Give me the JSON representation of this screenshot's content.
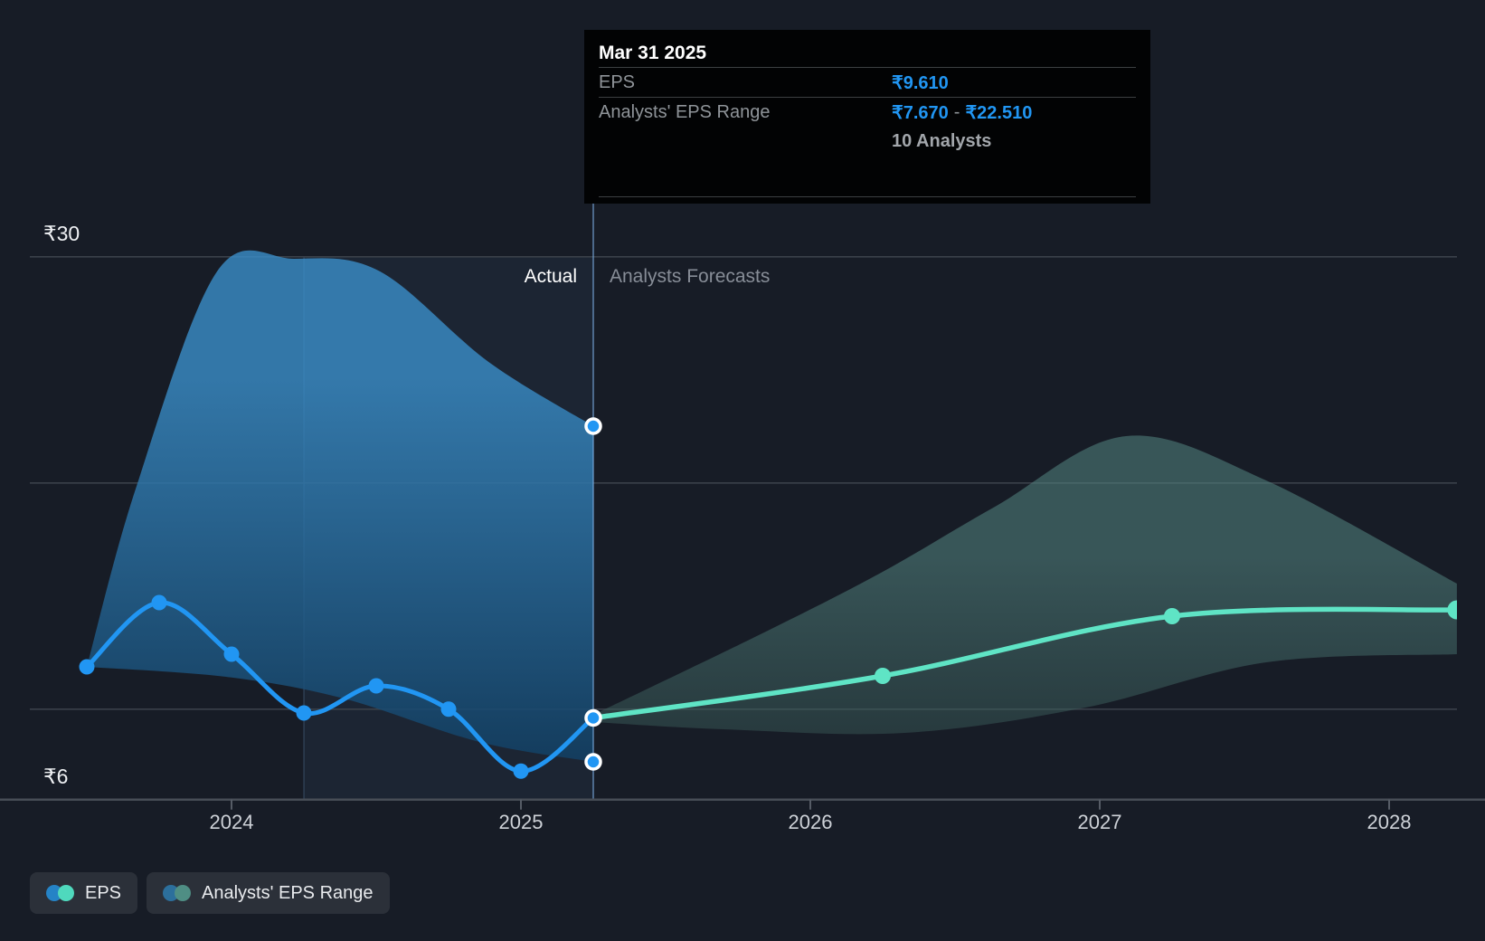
{
  "tooltip": {
    "date": "Mar 31 2025",
    "eps_label": "EPS",
    "eps_value": "₹9.610",
    "range_label": "Analysts' EPS Range",
    "range_low": "₹7.670",
    "range_separator": "-",
    "range_high": "₹22.510",
    "analysts_count": "10 Analysts"
  },
  "legend": {
    "items": [
      {
        "label": "EPS",
        "colors": [
          "#2583c6",
          "#4fd9bd"
        ]
      },
      {
        "label": "Analysts' EPS Range",
        "colors": [
          "#2c6f9c",
          "#4f8e84"
        ]
      }
    ]
  },
  "chart_data": {
    "type": "line",
    "title": "EPS actuals and analyst forecasts",
    "currency_symbol": "₹",
    "phase_labels": {
      "actual": "Actual",
      "forecast": "Analysts Forecasts"
    },
    "y_axis": {
      "labels": [
        {
          "value": 30,
          "label": "₹30"
        },
        {
          "value": 6,
          "label": "₹6"
        }
      ],
      "gridline_values": [
        30,
        20,
        10
      ],
      "axis_value": 6
    },
    "x_axis": {
      "ticks": [
        {
          "t": 2024,
          "label": "2024"
        },
        {
          "t": 2025,
          "label": "2025"
        },
        {
          "t": 2026,
          "label": "2026"
        },
        {
          "t": 2027,
          "label": "2027"
        },
        {
          "t": 2028,
          "label": "2028"
        }
      ]
    },
    "divider_t": 2025.25,
    "hover_band": {
      "t_start": 2024.25,
      "t_end": 2025.25
    },
    "series": [
      {
        "name": "EPS (actual)",
        "points": [
          {
            "t": 2023.5,
            "v": 11.87,
            "date": "Jun 30 2023"
          },
          {
            "t": 2023.75,
            "v": 14.71,
            "date": "Sep 30 2023"
          },
          {
            "t": 2024.0,
            "v": 12.43,
            "date": "Dec 31 2023"
          },
          {
            "t": 2024.25,
            "v": 9.83,
            "date": "Mar 31 2024"
          },
          {
            "t": 2024.5,
            "v": 11.03,
            "date": "Jun 30 2024"
          },
          {
            "t": 2024.75,
            "v": 10.0,
            "date": "Sep 30 2024"
          },
          {
            "t": 2025.0,
            "v": 7.26,
            "date": "Dec 31 2024"
          },
          {
            "t": 2025.25,
            "v": 9.61,
            "date": "Mar 31 2025"
          }
        ]
      },
      {
        "name": "EPS (analyst forecast)",
        "points": [
          {
            "t": 2025.25,
            "v": 9.61,
            "date": "Mar 31 2025"
          },
          {
            "t": 2026.25,
            "v": 11.47,
            "date": "Mar 31 2026"
          },
          {
            "t": 2027.25,
            "v": 14.11,
            "date": "Mar 31 2027"
          },
          {
            "t": 2028.234,
            "v": 14.39,
            "date": "Jun 2028"
          }
        ]
      }
    ],
    "actual_range_band": {
      "name": "Analysts' EPS Range (actual period)",
      "top": [
        [
          2023.5,
          11.87
        ],
        [
          2023.669,
          19.75
        ],
        [
          2023.95,
          29.35
        ],
        [
          2024.216,
          29.91
        ],
        [
          2024.513,
          29.35
        ],
        [
          2024.888,
          25.35
        ],
        [
          2025.25,
          22.51
        ]
      ],
      "bottom": [
        [
          2023.5,
          11.87
        ],
        [
          2023.981,
          11.43
        ],
        [
          2024.388,
          10.47
        ],
        [
          2024.856,
          8.55
        ],
        [
          2025.25,
          7.67
        ]
      ]
    },
    "forecast_range_band": {
      "name": "Analysts' EPS Range (forecast period)",
      "top": [
        [
          2025.25,
          9.75
        ],
        [
          2025.834,
          13.35
        ],
        [
          2026.244,
          16.03
        ],
        [
          2026.638,
          18.95
        ],
        [
          2027.091,
          22.07
        ],
        [
          2027.575,
          20.11
        ],
        [
          2028.234,
          15.55
        ]
      ],
      "bottom": [
        [
          2025.25,
          9.43
        ],
        [
          2025.7,
          9.11
        ],
        [
          2026.325,
          8.95
        ],
        [
          2026.95,
          10.07
        ],
        [
          2027.575,
          12.07
        ],
        [
          2028.234,
          12.43
        ]
      ]
    },
    "highlight_points": [
      {
        "t": 2025.25,
        "v": 22.51,
        "meaning": "analyst range high"
      },
      {
        "t": 2025.25,
        "v": 9.61,
        "meaning": "EPS"
      },
      {
        "t": 2025.25,
        "v": 7.67,
        "meaning": "analyst range low"
      }
    ],
    "colors": {
      "background": "#171c26",
      "eps_actual_line": "#2196f3",
      "eps_forecast_line": "#5fe4c5",
      "band_blue_top": "rgba(58,142,201,0.80)",
      "band_blue_bottom": "rgba(18,64,100,0.85)",
      "band_teal_top": "rgba(84,134,130,0.55)",
      "band_teal_bottom": "rgba(56,88,86,0.50)",
      "gridline": "#3a4049",
      "axis_line": "#474d56",
      "divider_line": "rgba(120,170,220,0.55)",
      "hover_band_fill": "rgba(90,150,210,0.08)",
      "hover_band_edge": "rgba(120,170,220,0.22)",
      "highlight_ring": "#ffffff"
    }
  }
}
